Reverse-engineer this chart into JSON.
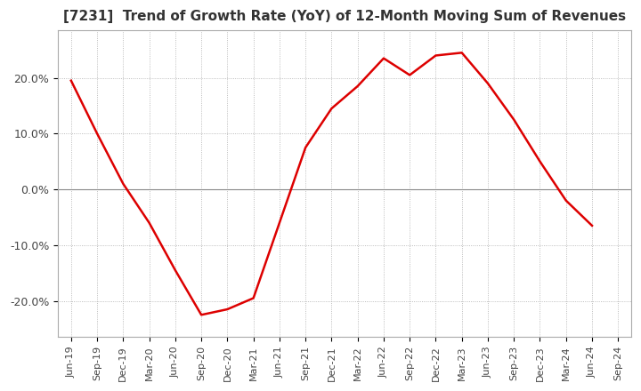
{
  "title": "[7231]  Trend of Growth Rate (YoY) of 12-Month Moving Sum of Revenues",
  "title_fontsize": 11,
  "bg_color": "#ffffff",
  "plot_bg_color": "#ffffff",
  "grid_color": "#aaaaaa",
  "line_color": "#dd0000",
  "zero_line_color": "#888888",
  "ylim": [
    -0.265,
    0.285
  ],
  "yticks": [
    -0.2,
    -0.1,
    0.0,
    0.1,
    0.2
  ],
  "ytick_labels": [
    "-20.0%",
    "-10.0%",
    "0.0%",
    "10.0%",
    "20.0%"
  ],
  "dates": [
    "Jun-19",
    "Sep-19",
    "Dec-19",
    "Mar-20",
    "Jun-20",
    "Sep-20",
    "Dec-20",
    "Mar-21",
    "Jun-21",
    "Sep-21",
    "Dec-21",
    "Mar-22",
    "Jun-22",
    "Sep-22",
    "Dec-22",
    "Mar-23",
    "Jun-23",
    "Sep-23",
    "Dec-23",
    "Mar-24",
    "Jun-24",
    "Sep-24"
  ],
  "values": [
    0.195,
    0.1,
    0.01,
    -0.06,
    -0.145,
    -0.225,
    -0.215,
    -0.195,
    -0.06,
    0.075,
    0.145,
    0.185,
    0.235,
    0.205,
    0.24,
    0.245,
    0.19,
    0.125,
    0.05,
    -0.02,
    -0.065,
    null
  ]
}
